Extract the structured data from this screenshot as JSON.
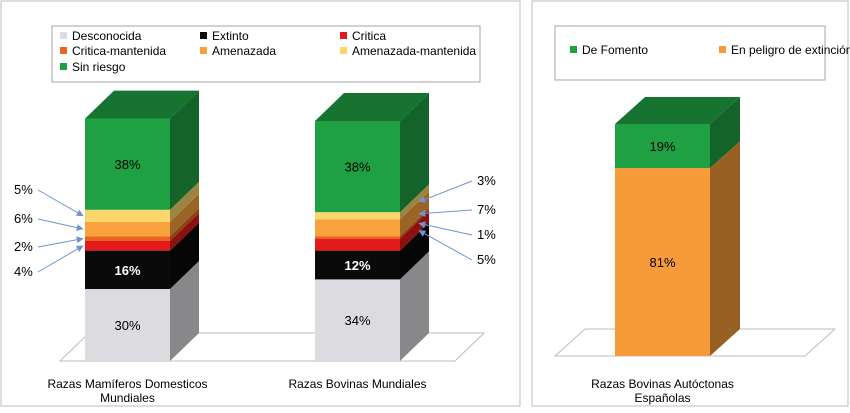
{
  "chart_data": [
    {
      "type": "bar",
      "stacked": true,
      "three_d": true,
      "categories": [
        "Razas Mamíferos Domesticos Mundiales",
        "Razas Bovinas Mundiales"
      ],
      "category_lines": [
        [
          "Razas Mamíferos Domesticos",
          "Mundiales"
        ],
        [
          "Razas Bovinas Mundiales"
        ]
      ],
      "unit": "%",
      "ylim": [
        0,
        100
      ],
      "legend": "top",
      "series": [
        {
          "name": "Desconocida",
          "color": "#dcdbe0",
          "values": [
            30,
            34
          ],
          "labels": [
            "30%",
            "34%"
          ]
        },
        {
          "name": "Extinto",
          "color": "#0a0a0a",
          "values": [
            16,
            12
          ],
          "labels": [
            "16%",
            "12%"
          ]
        },
        {
          "name": "Critica",
          "color": "#e31a1c",
          "values": [
            4,
            5
          ],
          "labels": [
            "4%",
            "5%"
          ]
        },
        {
          "name": "Critica-mantenida",
          "color": "#e8661a",
          "values": [
            2,
            1
          ],
          "labels": [
            "2%",
            "1%"
          ]
        },
        {
          "name": "Amenazada",
          "color": "#f7a23c",
          "values": [
            6,
            7
          ],
          "labels": [
            "6%",
            "7%"
          ]
        },
        {
          "name": "Amenazada-mantenida",
          "color": "#fbd66a",
          "values": [
            5,
            3
          ],
          "labels": [
            "5%",
            "3%"
          ]
        },
        {
          "name": "Sin riesgo",
          "color": "#1ea043",
          "values": [
            38,
            38
          ],
          "labels": [
            "38%",
            "38%"
          ]
        }
      ]
    },
    {
      "type": "bar",
      "stacked": true,
      "three_d": true,
      "categories": [
        "Razas Bovinas Autóctonas Españolas"
      ],
      "category_lines": [
        [
          "Razas Bovinas Autóctonas",
          "Españolas"
        ]
      ],
      "unit": "%",
      "ylim": [
        0,
        100
      ],
      "legend": "top",
      "series": [
        {
          "name": "En peligro de extinción",
          "color": "#f79b3a",
          "values": [
            81
          ],
          "labels": [
            "81%"
          ]
        },
        {
          "name": "De Fomento",
          "color": "#1ea043",
          "values": [
            19
          ],
          "labels": [
            "19%"
          ]
        }
      ]
    }
  ]
}
